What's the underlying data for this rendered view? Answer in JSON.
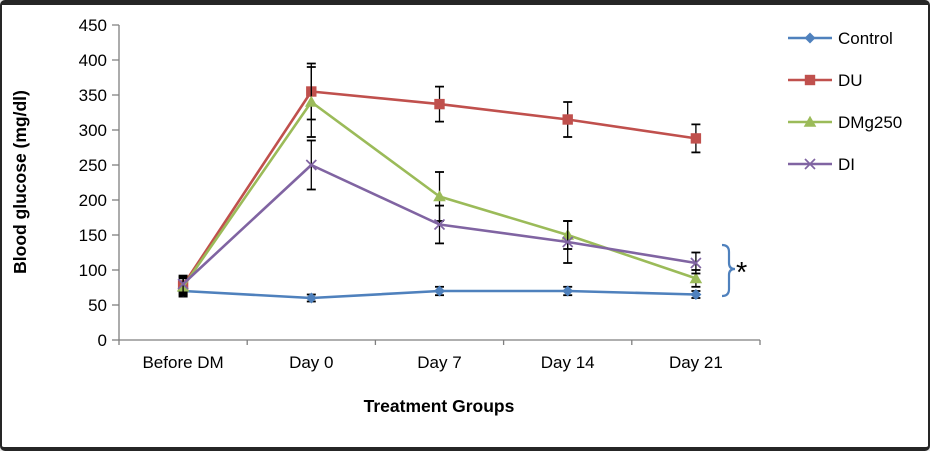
{
  "figure": {
    "background": "#ffffff",
    "border_color": "#262626"
  },
  "chart_data": {
    "type": "line",
    "title": "",
    "xlabel": "Treatment Groups",
    "ylabel": "Blood glucose (mg/dl)",
    "categories": [
      "Before DM",
      "Day 0",
      "Day 7",
      "Day 14",
      "Day 21"
    ],
    "y_axis": {
      "min": 0,
      "max": 450,
      "step": 50,
      "tick_labels": [
        "0",
        "50",
        "100",
        "150",
        "200",
        "250",
        "300",
        "350",
        "400",
        "450"
      ]
    },
    "grid": false,
    "legend_position": "right",
    "error_bars_shown": true,
    "series": [
      {
        "name": "Control",
        "marker": "diamond",
        "color": "#4F81BD",
        "values": [
          70,
          60,
          70,
          70,
          65
        ],
        "error_bars": [
          8,
          5,
          6,
          6,
          5
        ]
      },
      {
        "name": "DU",
        "marker": "square",
        "color": "#C0504D",
        "values": [
          78,
          355,
          337,
          315,
          288
        ],
        "error_bars": [
          12,
          40,
          25,
          25,
          20
        ]
      },
      {
        "name": "DMg250",
        "marker": "triangle",
        "color": "#9BBB59",
        "values": [
          76,
          340,
          205,
          150,
          88
        ],
        "error_bars": [
          12,
          50,
          35,
          20,
          12
        ]
      },
      {
        "name": "DI",
        "marker": "x",
        "color": "#8064A2",
        "values": [
          80,
          250,
          165,
          140,
          110
        ],
        "error_bars": [
          12,
          35,
          27,
          30,
          15
        ]
      }
    ],
    "annotation": {
      "symbol": "*",
      "bracket_color": "#4F81BD",
      "bracket_value_range": [
        64,
        135
      ],
      "bracket_category": "Day 21"
    }
  }
}
